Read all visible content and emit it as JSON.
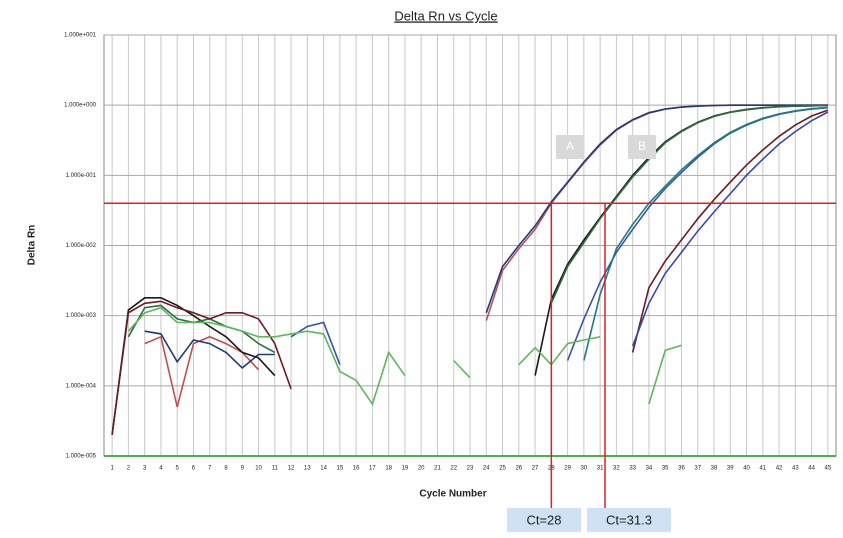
{
  "chart_data": {
    "type": "line",
    "title": "Delta Rn vs Cycle",
    "xlabel": "Cycle Number",
    "ylabel": "Delta Rn",
    "log_y": true,
    "grid": true,
    "xlim": [
      0.5,
      45.5
    ],
    "ylim": [
      1e-05,
      10
    ],
    "yticks": [
      {
        "value": 10,
        "label": "1.000e+001"
      },
      {
        "value": 1,
        "label": "1.000e+000"
      },
      {
        "value": 0.1,
        "label": "1.000e-001"
      },
      {
        "value": 0.01,
        "label": "1.000e-002"
      },
      {
        "value": 0.001,
        "label": "1.000e-003"
      },
      {
        "value": 0.0001,
        "label": "1.000e-004"
      },
      {
        "value": 1e-05,
        "label": "1.000e-005"
      }
    ],
    "xticks": [
      1,
      2,
      3,
      4,
      5,
      6,
      7,
      8,
      9,
      10,
      11,
      12,
      13,
      14,
      15,
      16,
      17,
      18,
      19,
      20,
      21,
      22,
      23,
      24,
      25,
      26,
      27,
      28,
      29,
      30,
      31,
      32,
      33,
      34,
      35,
      36,
      37,
      38,
      39,
      40,
      41,
      42,
      43,
      44,
      45
    ],
    "x": [
      1,
      2,
      3,
      4,
      5,
      6,
      7,
      8,
      9,
      10,
      11,
      12,
      13,
      14,
      15,
      16,
      17,
      18,
      19,
      20,
      21,
      22,
      23,
      24,
      25,
      26,
      27,
      28,
      29,
      30,
      31,
      32,
      33,
      34,
      35,
      36,
      37,
      38,
      39,
      40,
      41,
      42,
      43,
      44,
      45
    ],
    "threshold": {
      "value": 0.04,
      "color": "#e02020"
    },
    "ct_markers": [
      {
        "x": 28,
        "label": "Ct=28"
      },
      {
        "x": 31.3,
        "label": "Ct=31.3"
      }
    ],
    "annotations": [
      {
        "text": "A"
      },
      {
        "text": "B"
      }
    ],
    "series": [
      {
        "color": "#c0504d",
        "values": [
          null,
          null,
          0.0004,
          0.0005,
          5e-05,
          0.0004,
          0.0005,
          0.0004,
          0.0003,
          0.00017,
          null,
          null,
          null,
          null,
          null,
          null,
          null,
          null,
          null,
          null,
          null,
          null,
          null,
          0.00085,
          0.0044,
          0.009,
          0.017,
          0.04,
          0.078,
          0.15,
          0.27,
          0.44,
          0.61,
          0.77,
          0.88,
          0.94,
          0.97,
          0.99,
          1,
          1,
          1,
          1,
          1,
          1,
          1
        ]
      },
      {
        "color": "#1f3a80",
        "values": [
          null,
          null,
          0.0006,
          0.00055,
          0.00022,
          0.00045,
          0.0004,
          0.0003,
          0.00018,
          0.00028,
          0.00028,
          null,
          null,
          null,
          null,
          null,
          null,
          null,
          null,
          null,
          null,
          null,
          null,
          0.0011,
          0.005,
          0.01,
          0.019,
          0.042,
          0.08,
          0.155,
          0.28,
          0.45,
          0.62,
          0.78,
          0.88,
          0.94,
          0.97,
          0.99,
          1,
          1,
          1,
          1,
          1,
          1,
          1
        ]
      },
      {
        "color": "#1a1a1a",
        "values": [
          2e-05,
          0.0012,
          0.0018,
          0.0018,
          0.0014,
          0.001,
          0.0007,
          0.0005,
          0.0003,
          0.00025,
          0.00014,
          null,
          null,
          null,
          null,
          null,
          null,
          null,
          null,
          null,
          null,
          null,
          null,
          null,
          null,
          null,
          0.00014,
          0.0017,
          0.0054,
          0.012,
          0.025,
          0.05,
          0.1,
          0.18,
          0.3,
          0.43,
          0.57,
          0.7,
          0.8,
          0.87,
          0.92,
          0.95,
          0.97,
          0.98,
          1
        ]
      },
      {
        "color": "#2f6f3f",
        "values": [
          null,
          0.0005,
          0.0013,
          0.0014,
          0.0009,
          0.0008,
          0.0009,
          0.0007,
          0.0006,
          0.0004,
          0.0003,
          null,
          null,
          null,
          null,
          null,
          null,
          null,
          null,
          null,
          null,
          null,
          null,
          null,
          null,
          null,
          null,
          0.0015,
          0.005,
          0.011,
          0.024,
          0.048,
          0.095,
          0.17,
          0.29,
          0.42,
          0.56,
          0.69,
          0.79,
          0.86,
          0.91,
          0.95,
          0.97,
          0.98,
          0.99
        ]
      },
      {
        "color": "#3355aa",
        "values": [
          null,
          null,
          null,
          null,
          null,
          null,
          null,
          null,
          null,
          null,
          null,
          0.0005,
          0.0007,
          0.0008,
          0.0002,
          null,
          null,
          null,
          null,
          null,
          null,
          null,
          null,
          null,
          null,
          null,
          null,
          null,
          0.00023,
          0.0009,
          0.003,
          0.008,
          0.017,
          0.035,
          0.065,
          0.11,
          0.18,
          0.28,
          0.4,
          0.52,
          0.64,
          0.74,
          0.82,
          0.88,
          0.92
        ]
      },
      {
        "color": "#237a80",
        "values": [
          null,
          null,
          null,
          null,
          null,
          null,
          null,
          null,
          null,
          null,
          null,
          null,
          null,
          null,
          null,
          null,
          null,
          null,
          null,
          null,
          null,
          null,
          null,
          null,
          null,
          null,
          null,
          null,
          null,
          0.00023,
          0.002,
          0.009,
          0.02,
          0.04,
          0.07,
          0.12,
          0.19,
          0.29,
          0.41,
          0.53,
          0.65,
          0.75,
          0.83,
          0.89,
          0.93
        ]
      },
      {
        "color": "#6e1a22",
        "values": [
          2e-05,
          0.0011,
          0.0015,
          0.0016,
          0.0013,
          0.0011,
          0.0009,
          0.0011,
          0.0011,
          0.0009,
          0.0004,
          9e-05,
          null,
          null,
          null,
          null,
          null,
          null,
          null,
          null,
          null,
          null,
          null,
          null,
          null,
          null,
          null,
          null,
          null,
          null,
          null,
          null,
          0.0003,
          0.0025,
          0.006,
          0.012,
          0.024,
          0.045,
          0.08,
          0.14,
          0.23,
          0.36,
          0.52,
          0.7,
          0.85
        ]
      },
      {
        "color": "#3a46b0",
        "values": [
          null,
          null,
          null,
          null,
          null,
          null,
          null,
          null,
          null,
          null,
          null,
          null,
          null,
          null,
          null,
          null,
          null,
          null,
          null,
          null,
          null,
          null,
          null,
          null,
          null,
          null,
          null,
          null,
          null,
          null,
          null,
          null,
          0.00037,
          0.0015,
          0.004,
          0.008,
          0.016,
          0.03,
          0.055,
          0.1,
          0.17,
          0.28,
          0.42,
          0.6,
          0.8
        ]
      },
      {
        "color": "#5cb85c",
        "values": [
          null,
          0.0006,
          0.0011,
          0.0013,
          0.0008,
          0.0008,
          0.0008,
          0.0007,
          0.0006,
          0.0005,
          0.0005,
          0.00055,
          0.0006,
          0.00055,
          0.00016,
          0.00012,
          5.5e-05,
          0.0003,
          0.00014,
          null,
          null,
          0.00023,
          0.00013,
          null,
          null,
          0.0002,
          0.00035,
          0.0002,
          0.0004,
          0.00045,
          0.0005,
          null,
          null,
          5.5e-05,
          0.00032,
          0.00038,
          null,
          null,
          null,
          null,
          null,
          null,
          null,
          null,
          null
        ]
      }
    ]
  }
}
